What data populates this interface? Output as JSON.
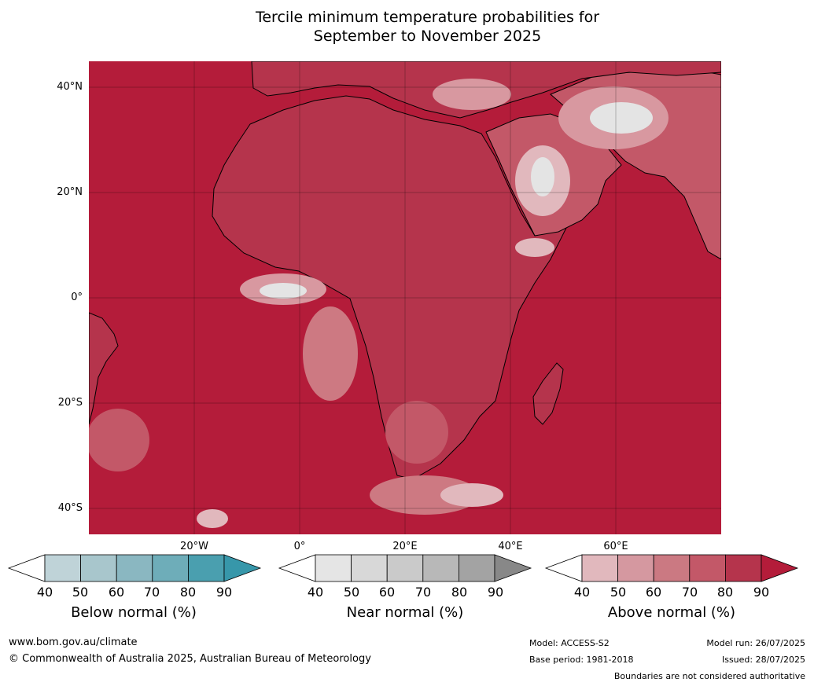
{
  "title_line1": "Tercile minimum temperature probabilities for",
  "title_line2": "September to November 2025",
  "lat_labels": [
    "40°N",
    "20°N",
    "0°",
    "20°S",
    "40°S"
  ],
  "lon_labels": [
    "20°W",
    "0°",
    "20°E",
    "40°E",
    "60°E"
  ],
  "colors": {
    "ocean_high": "#b41c3a",
    "above_90": "#b41c3a",
    "above_80": "#b5344c",
    "above_70": "#c35868",
    "above_60": "#cd7982",
    "above_50": "#d898a0",
    "above_40": "#e1b8bd",
    "near_light": "#e4e4e4",
    "coast": "#000000",
    "borders": "#7f7f7f"
  },
  "legends": [
    {
      "name": "Below normal (%)",
      "ticks": [
        "40",
        "50",
        "60",
        "70",
        "80",
        "90"
      ],
      "colors": [
        "#bfd3d8",
        "#a8c6cc",
        "#8ab7c1",
        "#6eadb9",
        "#4a9faf",
        "#3797aa"
      ]
    },
    {
      "name": "Near normal (%)",
      "ticks": [
        "40",
        "50",
        "60",
        "70",
        "80",
        "90"
      ],
      "colors": [
        "#e5e5e5",
        "#d8d8d8",
        "#cacaca",
        "#b8b8b8",
        "#a3a3a3",
        "#888888"
      ]
    },
    {
      "name": "Above normal (%)",
      "ticks": [
        "40",
        "50",
        "60",
        "70",
        "80",
        "90"
      ],
      "colors": [
        "#e1b8bd",
        "#d598a0",
        "#cb7982",
        "#c35868",
        "#b5344c",
        "#b41c3a"
      ]
    }
  ],
  "footer": {
    "website": "www.bom.gov.au/climate",
    "copyright": "© Commonwealth of Australia 2025, Australian Bureau of Meteorology",
    "model": "Model: ACCESS-S2",
    "base_period": "Base period: 1981-2018",
    "model_run": "Model run: 26/07/2025",
    "issued": "Issued: 28/07/2025",
    "disclaimer": "Boundaries are not considered authoritative"
  }
}
